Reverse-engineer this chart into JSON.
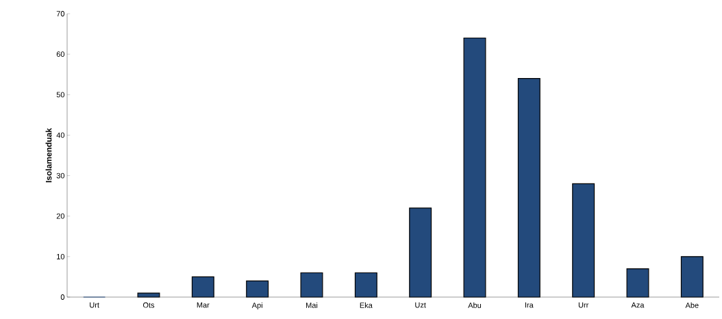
{
  "chart_data": {
    "type": "bar",
    "ylabel": "Isolamenduak",
    "categories": [
      "Urt",
      "Ots",
      "Mar",
      "Api",
      "Mai",
      "Eka",
      "Uzt",
      "Abu",
      "Ira",
      "Urr",
      "Aza",
      "Abe"
    ],
    "values": [
      0,
      1,
      5,
      4,
      6,
      6,
      22,
      64,
      54,
      28,
      7,
      10
    ],
    "color": "#234a7c",
    "ylim": [
      0,
      70
    ],
    "yticks": [
      0,
      10,
      20,
      30,
      40,
      50,
      60,
      70
    ],
    "grid": false
  }
}
